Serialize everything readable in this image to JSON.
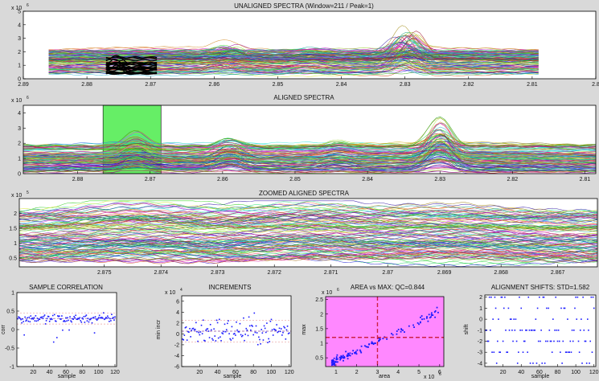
{
  "colors": {
    "figure_bg": "#d9d9d9",
    "axes_bg": "#ffffff",
    "align_window": "#66ee66",
    "area_max_bg": "#ff88ff",
    "threshold": "#cc2244",
    "points": "#1a1aff",
    "guide": "#e8a0a0"
  },
  "chart_data": [
    {
      "id": "unaligned",
      "type": "line",
      "title": "UNALIGNED SPECTRA (Window=211 / Peak=1)",
      "exponent": "x 10",
      "exponent_power": "6",
      "x_reversed": true,
      "xlim": [
        2.89,
        2.8
      ],
      "ylim": [
        0,
        5
      ],
      "x_ticks": [
        "2.89",
        "2.88",
        "2.87",
        "2.86",
        "2.85",
        "2.84",
        "2.83",
        "2.82",
        "2.81",
        "2.8"
      ],
      "y_ticks": [
        "0",
        "1",
        "2",
        "3",
        "4",
        "5"
      ],
      "x_ticks_values": [
        2.89,
        2.88,
        2.87,
        2.86,
        2.85,
        2.84,
        2.83,
        2.82,
        2.81,
        2.8
      ],
      "y_ticks_values": [
        0,
        1,
        2,
        3,
        4,
        5
      ],
      "x_range": [
        2.886,
        2.809
      ],
      "baseline_range": [
        0.3,
        2.2
      ],
      "spectra_count": 120,
      "peaks": [
        {
          "x": 2.83,
          "height_max": 2.6
        },
        {
          "x": 2.858,
          "height_max": 0.8
        },
        {
          "x": 2.845,
          "height_max": 0.4
        }
      ],
      "highlight_x": [
        2.877,
        2.869
      ],
      "highlight_color": "#000000",
      "grid": false
    },
    {
      "id": "aligned",
      "type": "line",
      "title": "ALIGNED SPECTRA",
      "exponent": "x 10",
      "exponent_power": "6",
      "x_reversed": true,
      "xlim": [
        2.8875,
        2.8085
      ],
      "ylim": [
        0,
        4.5
      ],
      "x_ticks": [
        "2.88",
        "2.87",
        "2.86",
        "2.85",
        "2.84",
        "2.83",
        "2.82",
        "2.81"
      ],
      "y_ticks": [
        "0",
        "1",
        "2",
        "3",
        "4"
      ],
      "x_ticks_values": [
        2.88,
        2.87,
        2.86,
        2.85,
        2.84,
        2.83,
        2.82,
        2.81
      ],
      "y_ticks_values": [
        0,
        1,
        2,
        3,
        4
      ],
      "x_range": [
        2.8875,
        2.8085
      ],
      "baseline_range": [
        0.1,
        1.9
      ],
      "spectra_count": 120,
      "window": [
        2.8765,
        2.8685
      ],
      "peaks": [
        {
          "x": 2.83,
          "height_max": 2.8
        },
        {
          "x": 2.872,
          "height_max": 1.2
        },
        {
          "x": 2.859,
          "height_max": 1.0
        },
        {
          "x": 2.844,
          "height_max": 0.5
        }
      ],
      "grid": false
    },
    {
      "id": "zoomed",
      "type": "line",
      "title": "ZOOMED ALIGNED SPECTRA",
      "exponent": "x 10",
      "exponent_power": "5",
      "x_reversed": true,
      "xlim": [
        2.8765,
        2.8663
      ],
      "ylim": [
        0.2,
        2.5
      ],
      "x_ticks": [
        "2.875",
        "2.874",
        "2.873",
        "2.872",
        "2.871",
        "2.87",
        "2.869",
        "2.868",
        "2.867"
      ],
      "y_ticks": [
        "0.5",
        "1",
        "1.5",
        "2"
      ],
      "x_ticks_values": [
        2.875,
        2.874,
        2.873,
        2.872,
        2.871,
        2.87,
        2.869,
        2.868,
        2.867
      ],
      "y_ticks_values": [
        0.5,
        1,
        1.5,
        2
      ],
      "x_range": [
        2.8765,
        2.8663
      ],
      "baseline_range": [
        0.35,
        2.1
      ],
      "spectra_count": 120,
      "bumps": [
        {
          "x": 2.8745,
          "height_max": 0.5
        },
        {
          "x": 2.8715,
          "height_max": 0.4
        },
        {
          "x": 2.869,
          "height_max": 0.35
        }
      ],
      "grid": false
    },
    {
      "id": "correlation",
      "type": "scatter",
      "title": "SAMPLE CORRELATION",
      "xlabel": "sample",
      "ylabel": "corr",
      "xlim": [
        0,
        122
      ],
      "ylim": [
        -1,
        1
      ],
      "x_ticks": [
        "20",
        "40",
        "60",
        "80",
        "100",
        "120"
      ],
      "y_ticks": [
        "-1",
        "-0.5",
        "0",
        "0.5",
        "1"
      ],
      "x_ticks_values": [
        20,
        40,
        60,
        80,
        100,
        120
      ],
      "y_ticks_values": [
        -1,
        -0.5,
        0,
        0.5,
        1
      ],
      "n": 120,
      "center": 0.3,
      "spread": 0.12,
      "outlier_floor": -0.45,
      "guide_lines": [
        0.45,
        0.15
      ],
      "mean_line": 0.3,
      "grid": false
    },
    {
      "id": "increments",
      "type": "scatter",
      "title": "INCREMENTS",
      "exponent": "x 10",
      "exponent_power": "4",
      "xlabel": "sample",
      "ylabel": "min incr",
      "xlim": [
        0,
        122
      ],
      "ylim": [
        -6,
        7
      ],
      "x_ticks": [
        "20",
        "40",
        "60",
        "80",
        "100",
        "120"
      ],
      "y_ticks": [
        "-6",
        "-4",
        "-2",
        "0",
        "2",
        "4",
        "6"
      ],
      "x_ticks_values": [
        20,
        40,
        60,
        80,
        100,
        120
      ],
      "y_ticks_values": [
        -6,
        -4,
        -2,
        0,
        2,
        4,
        6
      ],
      "n": 120,
      "center": 0.5,
      "spread": 2.6,
      "guide_lines": [
        2.5,
        -1.5
      ],
      "mean_line": 0.5,
      "grid": false
    },
    {
      "id": "area_max",
      "type": "scatter",
      "title": "AREA vs MAX: QC=0.844",
      "exponent_y": "x 10",
      "exponent_y_power": "6",
      "exponent_x": "x 10",
      "exponent_x_power": "6",
      "xlabel": "area",
      "ylabel": "max",
      "xlim": [
        0.5,
        6.2
      ],
      "ylim": [
        0.2,
        2.6
      ],
      "x_ticks": [
        "1",
        "2",
        "3",
        "4",
        "5",
        "6"
      ],
      "y_ticks": [
        "0.5",
        "1",
        "1.5",
        "2",
        "2.5"
      ],
      "x_ticks_values": [
        1,
        2,
        3,
        4,
        5,
        6
      ],
      "y_ticks_values": [
        0.5,
        1,
        1.5,
        2,
        2.5
      ],
      "n": 120,
      "threshold_x": 3.0,
      "threshold_y": 1.2,
      "grid": false
    },
    {
      "id": "shifts",
      "type": "scatter",
      "title": "ALIGNMENT SHIFTS: STD=1.582",
      "xlabel": "sample",
      "ylabel": "shift",
      "xlim": [
        0,
        122
      ],
      "ylim": [
        -4.3,
        2.2
      ],
      "x_ticks": [
        "20",
        "40",
        "60",
        "80",
        "100",
        "120"
      ],
      "y_ticks": [
        "-4",
        "-3",
        "-2",
        "-1",
        "0",
        "1",
        "2"
      ],
      "x_ticks_values": [
        20,
        40,
        60,
        80,
        100,
        120
      ],
      "y_ticks_values": [
        -4,
        -3,
        -2,
        -1,
        0,
        1,
        2
      ],
      "n": 120,
      "levels": [
        -4,
        -3,
        -2,
        -1,
        0,
        1,
        2
      ],
      "level_weights": [
        0.06,
        0.14,
        0.16,
        0.2,
        0.14,
        0.2,
        0.1
      ],
      "grid": false
    }
  ]
}
